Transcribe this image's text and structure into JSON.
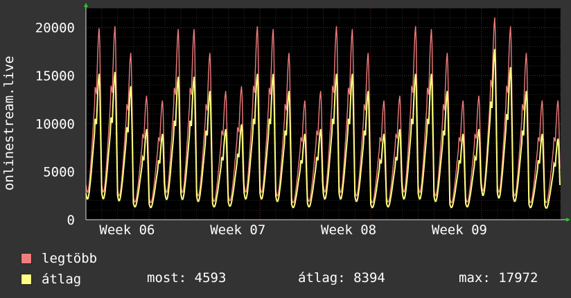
{
  "chart_data": {
    "type": "area",
    "ylabel": "onlinestream.live",
    "ylim": [
      0,
      22000
    ],
    "yticks": [
      0,
      5000,
      10000,
      15000,
      20000
    ],
    "x_tick_labels": [
      "Week 06",
      "Week 07",
      "Week 08",
      "Week 09"
    ],
    "grid": true,
    "legend_position": "bottom-left",
    "days": 30,
    "series": [
      {
        "name": "legtöbb",
        "color": "#f17c7c",
        "daily_peak": [
          20100,
          20300,
          17500,
          13000,
          12500,
          20000,
          20000,
          17500,
          13500,
          14000,
          20300,
          20000,
          17500,
          12500,
          13500,
          20300,
          20000,
          17500,
          12500,
          13000,
          20300,
          20000,
          17500,
          12500,
          13000,
          21200,
          20300,
          17500,
          12500,
          12500
        ]
      },
      {
        "name": "átlag",
        "color": "#ffff80",
        "daily_peak": [
          15300,
          15500,
          14000,
          9500,
          9000,
          15000,
          15000,
          13500,
          9500,
          10000,
          15300,
          15300,
          13500,
          9000,
          9500,
          15300,
          15300,
          13500,
          9000,
          9500,
          15300,
          15300,
          13500,
          9000,
          9500,
          17900,
          16000,
          13500,
          9000,
          8500
        ]
      }
    ]
  },
  "legend": [
    {
      "label": "legtöbb",
      "color": "#f17c7c"
    },
    {
      "label": "átlag",
      "color": "#ffff80"
    }
  ],
  "stats": {
    "now": "most: 4593",
    "avg": "átlag: 8394",
    "max": "max: 17972"
  }
}
